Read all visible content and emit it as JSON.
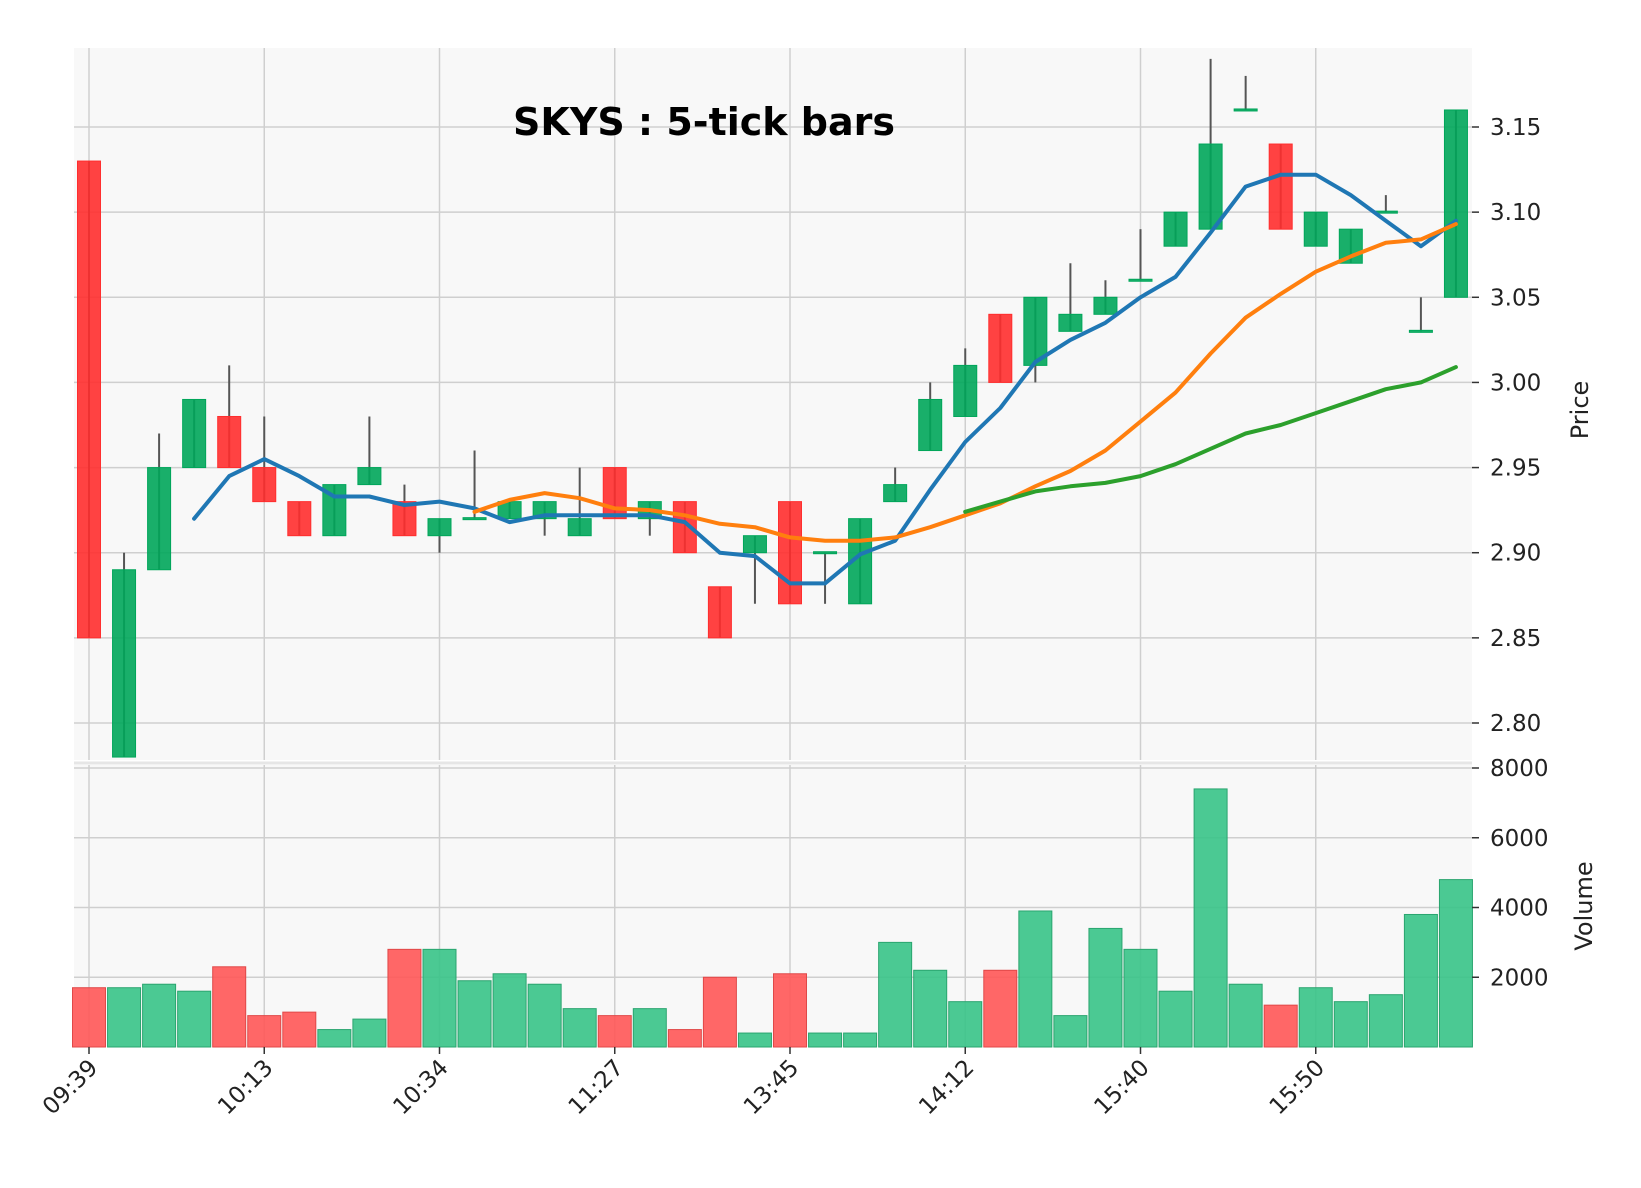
{
  "chart_data": {
    "type": "candlestick",
    "title": "SKYS : 5-tick bars",
    "price_panel": {
      "ylabel": "Price",
      "ylim": [
        2.775,
        3.195
      ],
      "yticks": [
        "2.80",
        "2.85",
        "2.90",
        "2.95",
        "3.00",
        "3.05",
        "3.10",
        "3.15"
      ],
      "grid": true
    },
    "volume_panel": {
      "ylabel": "Volume",
      "ylim": [
        0,
        8000
      ],
      "yticks": [
        "2000",
        "4000",
        "6000",
        "8000"
      ],
      "grid": true
    },
    "x_tick_labels": [
      "09:39",
      "10:13",
      "10:34",
      "11:27",
      "13:45",
      "14:12",
      "15:40",
      "15:50"
    ],
    "x_tick_bar_index": [
      0,
      5,
      10,
      15,
      20,
      25,
      30,
      35
    ],
    "up_color": "#00a65a",
    "down_color": "#ff2e2e",
    "bars": [
      {
        "o": 3.13,
        "h": 3.13,
        "l": 2.85,
        "c": 2.85,
        "v": 1700
      },
      {
        "o": 2.78,
        "h": 2.9,
        "l": 2.78,
        "c": 2.89,
        "v": 1700
      },
      {
        "o": 2.89,
        "h": 2.97,
        "l": 2.89,
        "c": 2.95,
        "v": 1800
      },
      {
        "o": 2.95,
        "h": 2.99,
        "l": 2.95,
        "c": 2.99,
        "v": 1600
      },
      {
        "o": 2.98,
        "h": 3.01,
        "l": 2.95,
        "c": 2.95,
        "v": 2300
      },
      {
        "o": 2.95,
        "h": 2.98,
        "l": 2.93,
        "c": 2.93,
        "v": 900
      },
      {
        "o": 2.93,
        "h": 2.93,
        "l": 2.91,
        "c": 2.91,
        "v": 1000
      },
      {
        "o": 2.91,
        "h": 2.94,
        "l": 2.91,
        "c": 2.94,
        "v": 500
      },
      {
        "o": 2.94,
        "h": 2.98,
        "l": 2.94,
        "c": 2.95,
        "v": 800
      },
      {
        "o": 2.93,
        "h": 2.94,
        "l": 2.91,
        "c": 2.91,
        "v": 2800
      },
      {
        "o": 2.91,
        "h": 2.92,
        "l": 2.9,
        "c": 2.92,
        "v": 2800
      },
      {
        "o": 2.92,
        "h": 2.96,
        "l": 2.92,
        "c": 2.92,
        "v": 1900
      },
      {
        "o": 2.92,
        "h": 2.93,
        "l": 2.92,
        "c": 2.93,
        "v": 2100
      },
      {
        "o": 2.92,
        "h": 2.93,
        "l": 2.91,
        "c": 2.93,
        "v": 1800
      },
      {
        "o": 2.91,
        "h": 2.95,
        "l": 2.91,
        "c": 2.92,
        "v": 1100
      },
      {
        "o": 2.95,
        "h": 2.95,
        "l": 2.92,
        "c": 2.92,
        "v": 900
      },
      {
        "o": 2.92,
        "h": 2.93,
        "l": 2.91,
        "c": 2.93,
        "v": 1100
      },
      {
        "o": 2.93,
        "h": 2.93,
        "l": 2.9,
        "c": 2.9,
        "v": 500
      },
      {
        "o": 2.88,
        "h": 2.88,
        "l": 2.85,
        "c": 2.85,
        "v": 2000
      },
      {
        "o": 2.9,
        "h": 2.91,
        "l": 2.87,
        "c": 2.91,
        "v": 400
      },
      {
        "o": 2.93,
        "h": 2.93,
        "l": 2.87,
        "c": 2.87,
        "v": 2100
      },
      {
        "o": 2.9,
        "h": 2.9,
        "l": 2.87,
        "c": 2.9,
        "v": 400
      },
      {
        "o": 2.87,
        "h": 2.92,
        "l": 2.87,
        "c": 2.92,
        "v": 400
      },
      {
        "o": 2.93,
        "h": 2.95,
        "l": 2.93,
        "c": 2.94,
        "v": 3000
      },
      {
        "o": 2.96,
        "h": 3.0,
        "l": 2.96,
        "c": 2.99,
        "v": 2200
      },
      {
        "o": 2.98,
        "h": 3.02,
        "l": 2.98,
        "c": 3.01,
        "v": 1300
      },
      {
        "o": 3.04,
        "h": 3.04,
        "l": 3.0,
        "c": 3.0,
        "v": 2200
      },
      {
        "o": 3.01,
        "h": 3.05,
        "l": 3.0,
        "c": 3.05,
        "v": 3900
      },
      {
        "o": 3.03,
        "h": 3.07,
        "l": 3.03,
        "c": 3.04,
        "v": 900
      },
      {
        "o": 3.04,
        "h": 3.06,
        "l": 3.04,
        "c": 3.05,
        "v": 3400
      },
      {
        "o": 3.06,
        "h": 3.09,
        "l": 3.06,
        "c": 3.06,
        "v": 2800
      },
      {
        "o": 3.08,
        "h": 3.1,
        "l": 3.08,
        "c": 3.1,
        "v": 1600
      },
      {
        "o": 3.09,
        "h": 3.19,
        "l": 3.09,
        "c": 3.14,
        "v": 7400
      },
      {
        "o": 3.16,
        "h": 3.18,
        "l": 3.16,
        "c": 3.16,
        "v": 1800
      },
      {
        "o": 3.14,
        "h": 3.14,
        "l": 3.09,
        "c": 3.09,
        "v": 1200
      },
      {
        "o": 3.08,
        "h": 3.1,
        "l": 3.08,
        "c": 3.1,
        "v": 1700
      },
      {
        "o": 3.07,
        "h": 3.09,
        "l": 3.07,
        "c": 3.09,
        "v": 1300
      },
      {
        "o": 3.1,
        "h": 3.11,
        "l": 3.1,
        "c": 3.1,
        "v": 1500
      },
      {
        "o": 3.03,
        "h": 3.05,
        "l": 3.03,
        "c": 3.03,
        "v": 3800
      },
      {
        "o": 3.05,
        "h": 3.16,
        "l": 3.05,
        "c": 3.16,
        "v": 4800
      }
    ],
    "series": [
      {
        "color": "#1f77b4",
        "start_index": 3,
        "values": [
          2.92,
          2.945,
          2.955,
          2.945,
          2.933,
          2.933,
          2.928,
          2.93,
          2.926,
          2.918,
          2.922,
          2.922,
          2.922,
          2.922,
          2.918,
          2.9,
          2.898,
          2.882,
          2.882,
          2.899,
          2.907,
          2.937,
          2.965,
          2.985,
          3.012,
          3.025,
          3.035,
          3.05,
          3.062,
          3.088,
          3.115,
          3.122,
          3.122,
          3.11,
          3.095,
          3.08,
          3.095
        ]
      },
      {
        "color": "#ff7f0e",
        "start_index": 11,
        "values": [
          2.924,
          2.931,
          2.935,
          2.932,
          2.926,
          2.925,
          2.922,
          2.917,
          2.915,
          2.909,
          2.907,
          2.907,
          2.909,
          2.915,
          2.922,
          2.929,
          2.939,
          2.948,
          2.96,
          2.977,
          2.994,
          3.017,
          3.038,
          3.052,
          3.065,
          3.074,
          3.082,
          3.084,
          3.093
        ]
      },
      {
        "color": "#2ca02c",
        "start_index": 25,
        "values": [
          2.924,
          2.93,
          2.936,
          2.939,
          2.941,
          2.945,
          2.952,
          2.961,
          2.97,
          2.975,
          2.982,
          2.989,
          2.996,
          3.0,
          3.009
        ]
      }
    ]
  }
}
